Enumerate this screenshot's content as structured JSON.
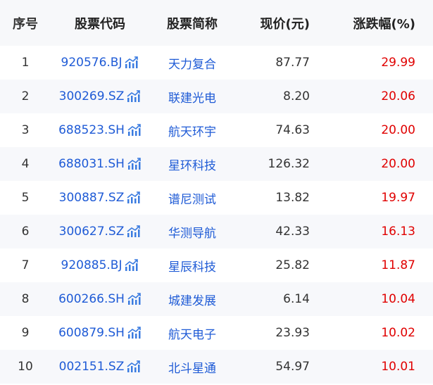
{
  "headers": [
    "序号",
    "股票代码",
    "股票简称",
    "现价(元)",
    "涨跌幅(%)"
  ],
  "colors": {
    "link": "#1f5bd6",
    "up": "#e00000"
  },
  "rows": [
    {
      "no": "1",
      "code": "920576.BJ",
      "name": "天力复合",
      "price": "87.77",
      "pct": "29.99"
    },
    {
      "no": "2",
      "code": "300269.SZ",
      "name": "联建光电",
      "price": "8.20",
      "pct": "20.06"
    },
    {
      "no": "3",
      "code": "688523.SH",
      "name": "航天环宇",
      "price": "74.63",
      "pct": "20.00"
    },
    {
      "no": "4",
      "code": "688031.SH",
      "name": "星环科技",
      "price": "126.32",
      "pct": "20.00"
    },
    {
      "no": "5",
      "code": "300887.SZ",
      "name": "谱尼测试",
      "price": "13.82",
      "pct": "19.97"
    },
    {
      "no": "6",
      "code": "300627.SZ",
      "name": "华测导航",
      "price": "42.33",
      "pct": "16.13"
    },
    {
      "no": "7",
      "code": "920885.BJ",
      "name": "星辰科技",
      "price": "25.82",
      "pct": "11.87"
    },
    {
      "no": "8",
      "code": "600266.SH",
      "name": "城建发展",
      "price": "6.14",
      "pct": "10.04"
    },
    {
      "no": "9",
      "code": "600879.SH",
      "name": "航天电子",
      "price": "23.93",
      "pct": "10.02"
    },
    {
      "no": "10",
      "code": "002151.SZ",
      "name": "北斗星通",
      "price": "54.97",
      "pct": "10.01"
    }
  ]
}
